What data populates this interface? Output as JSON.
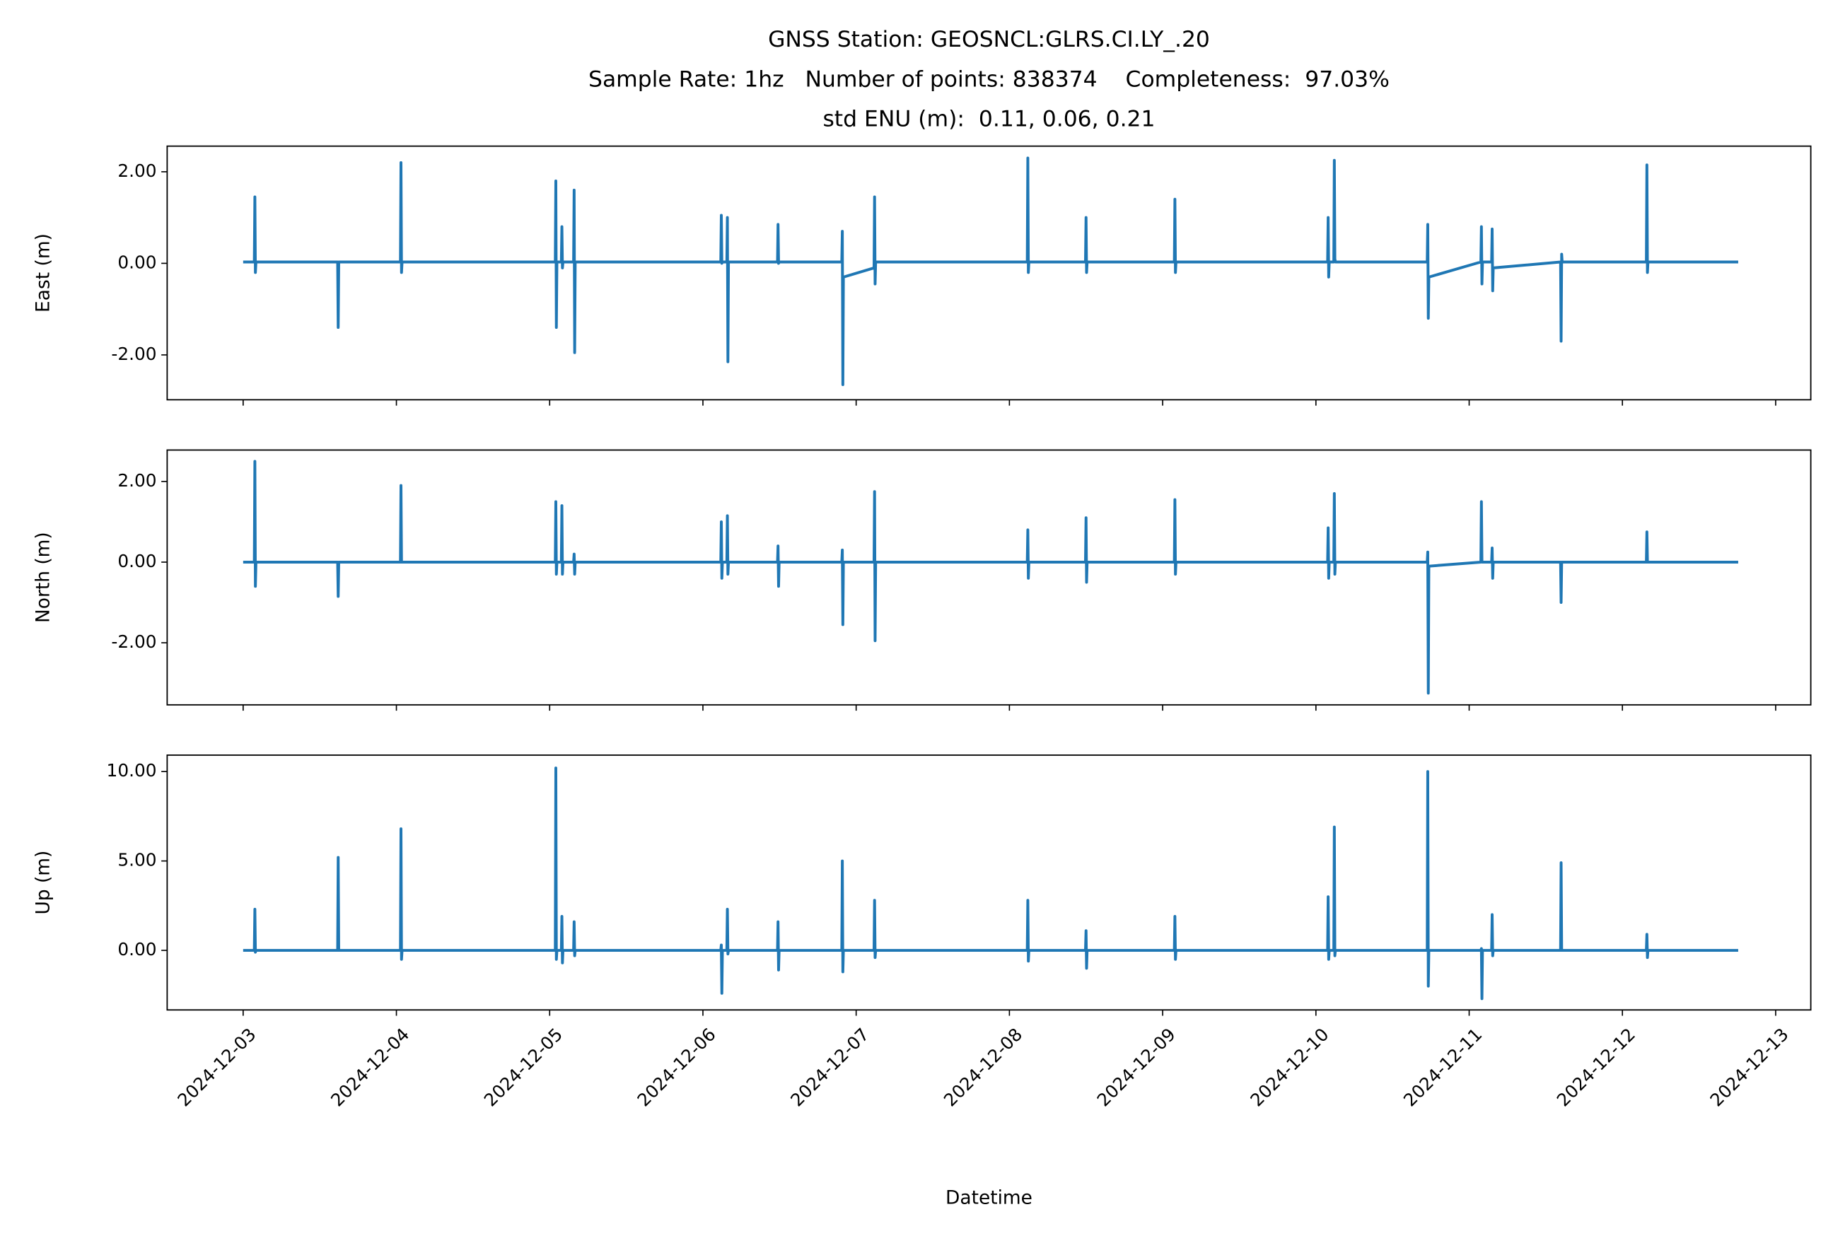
{
  "chart_data": [
    {
      "type": "line",
      "title": [
        "GNSS Station: GEOSNCL:GLRS.CI.LY_.20",
        "Sample Rate: 1hz   Number of points: 838374    Completeness:  97.03%",
        "std ENU (m):  0.11, 0.06, 0.21"
      ],
      "ylabel": "East (m)",
      "color": "#1f77b4",
      "xlim": [
        "2024-12-02 12:06",
        "2024-12-13 05:30"
      ],
      "ylim": [
        -2.98,
        2.56
      ],
      "yticks": [
        {
          "value": -2,
          "label": "-2.00"
        },
        {
          "value": 0,
          "label": "0.00"
        },
        {
          "value": 2,
          "label": "2.00"
        }
      ],
      "x": [
        "2024-12-03 00:00",
        "2024-12-03 01:45",
        "2024-12-03 01:50",
        "2024-12-03 01:55",
        "2024-12-03 02:00",
        "2024-12-03 14:48",
        "2024-12-03 14:53",
        "2024-12-03 14:58",
        "2024-12-03 15:03",
        "2024-12-04 00:38",
        "2024-12-04 00:43",
        "2024-12-04 00:48",
        "2024-12-04 00:53",
        "2024-12-05 00:53",
        "2024-12-05 00:58",
        "2024-12-05 01:03",
        "2024-12-05 01:08",
        "2024-12-05 01:50",
        "2024-12-05 01:55",
        "2024-12-05 02:00",
        "2024-12-05 02:05",
        "2024-12-05 03:45",
        "2024-12-05 03:50",
        "2024-12-05 03:55",
        "2024-12-05 04:00",
        "2024-12-06 02:48",
        "2024-12-06 02:53",
        "2024-12-06 02:58",
        "2024-12-06 03:03",
        "2024-12-06 03:45",
        "2024-12-06 03:50",
        "2024-12-06 03:55",
        "2024-12-06 04:00",
        "2024-12-06 11:41",
        "2024-12-06 11:46",
        "2024-12-06 11:51",
        "2024-12-06 11:56",
        "2024-12-06 21:45",
        "2024-12-06 21:50",
        "2024-12-06 21:55",
        "2024-12-06 22:00",
        "2024-12-07 02:48",
        "2024-12-07 02:53",
        "2024-12-07 02:58",
        "2024-12-07 03:03",
        "2024-12-08 02:48",
        "2024-12-08 02:53",
        "2024-12-08 02:58",
        "2024-12-08 03:03",
        "2024-12-08 11:55",
        "2024-12-08 12:00",
        "2024-12-08 12:05",
        "2024-12-08 12:10",
        "2024-12-09 01:50",
        "2024-12-09 01:55",
        "2024-12-09 02:00",
        "2024-12-09 02:05",
        "2024-12-10 01:50",
        "2024-12-10 01:55",
        "2024-12-10 02:00",
        "2024-12-10 02:05",
        "2024-12-10 02:48",
        "2024-12-10 02:53",
        "2024-12-10 02:58",
        "2024-12-10 03:03",
        "2024-12-10 17:26",
        "2024-12-10 17:31",
        "2024-12-10 17:36",
        "2024-12-10 17:41",
        "2024-12-11 01:50",
        "2024-12-11 01:55",
        "2024-12-11 02:00",
        "2024-12-11 02:05",
        "2024-12-11 03:31",
        "2024-12-11 03:36",
        "2024-12-11 03:41",
        "2024-12-11 03:46",
        "2024-12-11 14:19",
        "2024-12-11 14:24",
        "2024-12-11 14:29",
        "2024-12-11 14:34",
        "2024-12-12 03:45",
        "2024-12-12 03:50",
        "2024-12-12 03:55",
        "2024-12-12 04:00",
        "2024-12-12 18:08"
      ],
      "values": [
        0.03,
        0.03,
        1.45,
        -0.2,
        0.03,
        0.03,
        -1.4,
        0.03,
        0.03,
        0.03,
        2.2,
        -0.2,
        0.03,
        0.03,
        1.8,
        -1.4,
        0.03,
        0.03,
        0.8,
        -0.1,
        0.03,
        0.03,
        1.6,
        -1.95,
        0.03,
        0.03,
        1.05,
        0,
        0.03,
        0.03,
        1.0,
        -2.15,
        0.03,
        0.03,
        0.85,
        0,
        0.03,
        0.03,
        0.7,
        -2.65,
        -0.3,
        -0.1,
        1.45,
        -0.45,
        0.03,
        0.03,
        2.3,
        -0.2,
        0.03,
        0.03,
        1.0,
        -0.2,
        0.03,
        0.03,
        1.4,
        -0.2,
        0.03,
        0.03,
        1.0,
        -0.3,
        0.03,
        0.03,
        2.25,
        0.1,
        0.03,
        0.03,
        0.85,
        -1.2,
        -0.3,
        0.03,
        0.8,
        -0.45,
        0.03,
        0.03,
        0.75,
        -0.6,
        -0.1,
        0.03,
        -1.7,
        0.2,
        0.03,
        0.03,
        2.15,
        -0.2,
        0.03,
        0.03
      ]
    },
    {
      "type": "line",
      "ylabel": "North (m)",
      "color": "#1f77b4",
      "xlim": [
        "2024-12-02 12:06",
        "2024-12-13 05:30"
      ],
      "ylim": [
        -3.54,
        2.78
      ],
      "yticks": [
        {
          "value": -2,
          "label": "-2.00"
        },
        {
          "value": 0,
          "label": "0.00"
        },
        {
          "value": 2,
          "label": "2.00"
        }
      ],
      "x": [
        "2024-12-03 00:00",
        "2024-12-03 01:45",
        "2024-12-03 01:50",
        "2024-12-03 01:55",
        "2024-12-03 02:00",
        "2024-12-03 14:48",
        "2024-12-03 14:53",
        "2024-12-03 14:58",
        "2024-12-03 15:03",
        "2024-12-04 00:38",
        "2024-12-04 00:43",
        "2024-12-04 00:48",
        "2024-12-04 00:53",
        "2024-12-05 00:53",
        "2024-12-05 00:58",
        "2024-12-05 01:03",
        "2024-12-05 01:08",
        "2024-12-05 01:50",
        "2024-12-05 01:55",
        "2024-12-05 02:00",
        "2024-12-05 02:05",
        "2024-12-05 03:45",
        "2024-12-05 03:50",
        "2024-12-05 03:55",
        "2024-12-05 04:00",
        "2024-12-06 02:48",
        "2024-12-06 02:53",
        "2024-12-06 02:58",
        "2024-12-06 03:03",
        "2024-12-06 03:45",
        "2024-12-06 03:50",
        "2024-12-06 03:55",
        "2024-12-06 04:00",
        "2024-12-06 11:41",
        "2024-12-06 11:46",
        "2024-12-06 11:51",
        "2024-12-06 11:56",
        "2024-12-06 21:45",
        "2024-12-06 21:50",
        "2024-12-06 21:55",
        "2024-12-06 22:00",
        "2024-12-07 02:48",
        "2024-12-07 02:53",
        "2024-12-07 02:58",
        "2024-12-07 03:03",
        "2024-12-08 02:48",
        "2024-12-08 02:53",
        "2024-12-08 02:58",
        "2024-12-08 03:03",
        "2024-12-08 11:55",
        "2024-12-08 12:00",
        "2024-12-08 12:05",
        "2024-12-08 12:10",
        "2024-12-09 01:50",
        "2024-12-09 01:55",
        "2024-12-09 02:00",
        "2024-12-09 02:05",
        "2024-12-10 01:50",
        "2024-12-10 01:55",
        "2024-12-10 02:00",
        "2024-12-10 02:05",
        "2024-12-10 02:48",
        "2024-12-10 02:53",
        "2024-12-10 02:58",
        "2024-12-10 03:03",
        "2024-12-10 17:26",
        "2024-12-10 17:31",
        "2024-12-10 17:36",
        "2024-12-10 17:41",
        "2024-12-11 01:50",
        "2024-12-11 01:55",
        "2024-12-11 02:00",
        "2024-12-11 02:05",
        "2024-12-11 03:31",
        "2024-12-11 03:36",
        "2024-12-11 03:41",
        "2024-12-11 03:46",
        "2024-12-11 14:19",
        "2024-12-11 14:24",
        "2024-12-11 14:29",
        "2024-12-11 14:34",
        "2024-12-12 03:45",
        "2024-12-12 03:50",
        "2024-12-12 03:55",
        "2024-12-12 04:00",
        "2024-12-12 18:08"
      ],
      "values": [
        0,
        0,
        2.5,
        -0.6,
        0,
        0,
        -0.85,
        0,
        0,
        0,
        1.9,
        0,
        0,
        0,
        1.5,
        -0.3,
        0,
        0,
        1.4,
        -0.3,
        0,
        0,
        0.2,
        -0.3,
        0,
        0,
        1.0,
        -0.4,
        0,
        0,
        1.15,
        -0.3,
        0,
        0,
        0.4,
        -0.6,
        0,
        0,
        0.3,
        -1.55,
        0,
        0,
        1.75,
        -1.95,
        0,
        0,
        0.8,
        -0.4,
        0,
        0,
        1.1,
        -0.5,
        0,
        0,
        1.55,
        -0.3,
        0,
        0,
        0.85,
        -0.4,
        0,
        0,
        1.7,
        -0.3,
        0,
        0,
        0.25,
        -3.25,
        -0.1,
        0,
        1.5,
        0,
        0,
        0,
        0.35,
        -0.4,
        0,
        0,
        -1.0,
        0,
        0,
        0,
        0.75,
        0,
        0,
        0
      ]
    },
    {
      "type": "line",
      "ylabel": "Up (m)",
      "xlabel": "Datetime",
      "color": "#1f77b4",
      "xlim": [
        "2024-12-02 12:06",
        "2024-12-13 05:30"
      ],
      "ylim": [
        -3.33,
        10.92
      ],
      "yticks": [
        {
          "value": 0,
          "label": "0.00"
        },
        {
          "value": 5,
          "label": "5.00"
        },
        {
          "value": 10,
          "label": "10.00"
        }
      ],
      "xticks": [
        "2024-12-03",
        "2024-12-04",
        "2024-12-05",
        "2024-12-06",
        "2024-12-07",
        "2024-12-08",
        "2024-12-09",
        "2024-12-10",
        "2024-12-11",
        "2024-12-12",
        "2024-12-13"
      ],
      "x": [
        "2024-12-03 00:00",
        "2024-12-03 01:45",
        "2024-12-03 01:50",
        "2024-12-03 01:55",
        "2024-12-03 02:00",
        "2024-12-03 14:48",
        "2024-12-03 14:53",
        "2024-12-03 14:58",
        "2024-12-03 15:03",
        "2024-12-04 00:38",
        "2024-12-04 00:43",
        "2024-12-04 00:48",
        "2024-12-04 00:53",
        "2024-12-05 00:53",
        "2024-12-05 00:58",
        "2024-12-05 01:03",
        "2024-12-05 01:08",
        "2024-12-05 01:50",
        "2024-12-05 01:55",
        "2024-12-05 02:00",
        "2024-12-05 02:05",
        "2024-12-05 03:45",
        "2024-12-05 03:50",
        "2024-12-05 03:55",
        "2024-12-05 04:00",
        "2024-12-06 02:48",
        "2024-12-06 02:53",
        "2024-12-06 02:58",
        "2024-12-06 03:03",
        "2024-12-06 03:45",
        "2024-12-06 03:50",
        "2024-12-06 03:55",
        "2024-12-06 04:00",
        "2024-12-06 11:41",
        "2024-12-06 11:46",
        "2024-12-06 11:51",
        "2024-12-06 11:56",
        "2024-12-06 21:45",
        "2024-12-06 21:50",
        "2024-12-06 21:55",
        "2024-12-06 22:00",
        "2024-12-07 02:48",
        "2024-12-07 02:53",
        "2024-12-07 02:58",
        "2024-12-07 03:03",
        "2024-12-08 02:48",
        "2024-12-08 02:53",
        "2024-12-08 02:58",
        "2024-12-08 03:03",
        "2024-12-08 11:55",
        "2024-12-08 12:00",
        "2024-12-08 12:05",
        "2024-12-08 12:10",
        "2024-12-09 01:50",
        "2024-12-09 01:55",
        "2024-12-09 02:00",
        "2024-12-09 02:05",
        "2024-12-10 01:50",
        "2024-12-10 01:55",
        "2024-12-10 02:00",
        "2024-12-10 02:05",
        "2024-12-10 02:48",
        "2024-12-10 02:53",
        "2024-12-10 02:58",
        "2024-12-10 03:03",
        "2024-12-10 17:26",
        "2024-12-10 17:31",
        "2024-12-10 17:36",
        "2024-12-10 17:41",
        "2024-12-11 01:50",
        "2024-12-11 01:55",
        "2024-12-11 02:00",
        "2024-12-11 02:05",
        "2024-12-11 03:31",
        "2024-12-11 03:36",
        "2024-12-11 03:41",
        "2024-12-11 03:46",
        "2024-12-11 14:19",
        "2024-12-11 14:24",
        "2024-12-11 14:29",
        "2024-12-11 14:34",
        "2024-12-12 03:45",
        "2024-12-12 03:50",
        "2024-12-12 03:55",
        "2024-12-12 04:00",
        "2024-12-12 18:08"
      ],
      "values": [
        0,
        0,
        2.3,
        -0.1,
        0,
        0,
        5.2,
        0,
        0,
        0,
        6.8,
        -0.5,
        0,
        0,
        10.2,
        -0.5,
        0,
        0,
        1.9,
        -0.7,
        0,
        0,
        1.6,
        -0.3,
        0,
        0,
        0.3,
        -2.4,
        0,
        0,
        2.3,
        -0.2,
        0,
        0,
        1.6,
        -1.1,
        0,
        0,
        5.0,
        -1.2,
        0,
        0,
        2.8,
        -0.4,
        0,
        0,
        2.8,
        -0.6,
        0,
        0,
        1.1,
        -1.0,
        0,
        0,
        1.9,
        -0.5,
        0,
        0,
        3.0,
        -0.5,
        0,
        0,
        6.9,
        -0.3,
        0,
        0,
        10.0,
        -2.0,
        0,
        0,
        0.1,
        -2.7,
        0,
        0,
        2.0,
        -0.3,
        0,
        0,
        4.9,
        0,
        0,
        0,
        0.9,
        -0.4,
        0,
        0
      ]
    }
  ]
}
